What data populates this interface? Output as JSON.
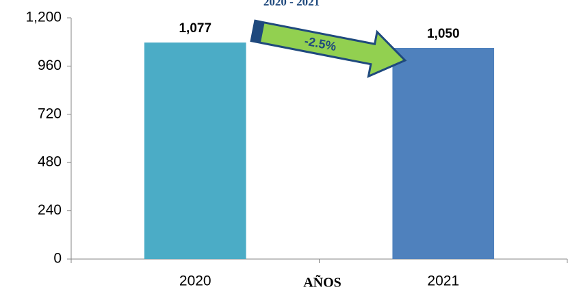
{
  "chart_data": {
    "type": "bar",
    "title": "2020 - 2021",
    "categories": [
      "2020",
      "2021"
    ],
    "values": [
      1077,
      1050
    ],
    "value_labels": [
      "1,077",
      "1,050"
    ],
    "colors": [
      "#4bacc6",
      "#4f81bd"
    ],
    "ylim": [
      0,
      1200
    ],
    "yticks": [
      0,
      240,
      480,
      720,
      960,
      {
        "value": 1200,
        "label": "1,200"
      }
    ],
    "xlabel": "AÑOS",
    "annotation": "-2.5%"
  }
}
